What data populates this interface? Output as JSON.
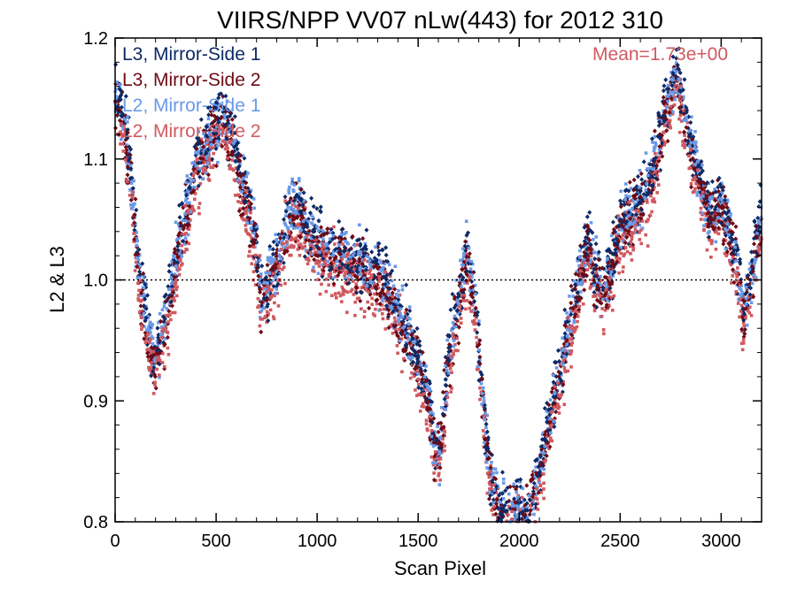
{
  "chart_data": {
    "type": "scatter",
    "title": "VIIRS/NPP VV07 nLw(443) for 2012 310",
    "xlabel": "Scan Pixel",
    "ylabel": "L2 & L3",
    "xlim": [
      0,
      3200
    ],
    "ylim": [
      0.8,
      1.2
    ],
    "x_ticks": [
      0,
      500,
      1000,
      1500,
      2000,
      2500,
      3000
    ],
    "x_tick_labels": [
      "0",
      "500",
      "1000",
      "1500",
      "2000",
      "2500",
      "3000"
    ],
    "y_ticks": [
      0.8,
      0.9,
      1.0,
      1.1,
      1.2
    ],
    "y_tick_labels": [
      "0.8",
      "0.9",
      "1.0",
      "1.1",
      "1.2"
    ],
    "reference_line": {
      "y": 1.0,
      "style": "dotted"
    },
    "annotation": {
      "text": "Mean=1.73e+00",
      "color": "#d0595f",
      "placement": "top-right"
    },
    "grid": false,
    "legend_placement": "top-left",
    "series": [
      {
        "name": "L3, Mirror-Side 1",
        "color": "#0d2a66",
        "marker": "diamond"
      },
      {
        "name": "L3, Mirror-Side 2",
        "color": "#6e0a14",
        "marker": "diamond"
      },
      {
        "name": "L2, Mirror-Side 1",
        "color": "#6a9ae8",
        "marker": "square"
      },
      {
        "name": "L2, Mirror-Side 2",
        "color": "#d0595f",
        "marker": "square"
      }
    ],
    "trend": {
      "x": [
        0,
        40,
        80,
        120,
        160,
        200,
        240,
        280,
        330,
        400,
        460,
        520,
        580,
        620,
        660,
        700,
        730,
        760,
        800,
        840,
        880,
        950,
        1000,
        1100,
        1200,
        1300,
        1350,
        1400,
        1450,
        1500,
        1550,
        1580,
        1610,
        1650,
        1700,
        1740,
        1780,
        1820,
        1850,
        1900,
        1950,
        2000,
        2050,
        2100,
        2150,
        2200,
        2250,
        2300,
        2340,
        2380,
        2420,
        2460,
        2500,
        2550,
        2600,
        2650,
        2700,
        2750,
        2780,
        2820,
        2880,
        2940,
        3000,
        3040,
        3080,
        3110,
        3150,
        3200
      ],
      "y": [
        1.15,
        1.13,
        1.08,
        1.0,
        0.96,
        0.93,
        0.96,
        0.99,
        1.04,
        1.09,
        1.11,
        1.13,
        1.12,
        1.08,
        1.06,
        1.02,
        0.98,
        1.0,
        1.01,
        1.04,
        1.06,
        1.04,
        1.03,
        1.02,
        1.01,
        1.0,
        0.99,
        0.97,
        0.95,
        0.93,
        0.9,
        0.86,
        0.86,
        0.93,
        0.98,
        1.02,
        0.98,
        0.9,
        0.84,
        0.81,
        0.8,
        0.81,
        0.8,
        0.84,
        0.88,
        0.92,
        0.96,
        1.0,
        1.03,
        1.0,
        0.99,
        1.01,
        1.04,
        1.05,
        1.06,
        1.08,
        1.12,
        1.15,
        1.17,
        1.13,
        1.09,
        1.05,
        1.06,
        1.04,
        1.01,
        0.97,
        1.0,
        1.05
      ]
    }
  }
}
